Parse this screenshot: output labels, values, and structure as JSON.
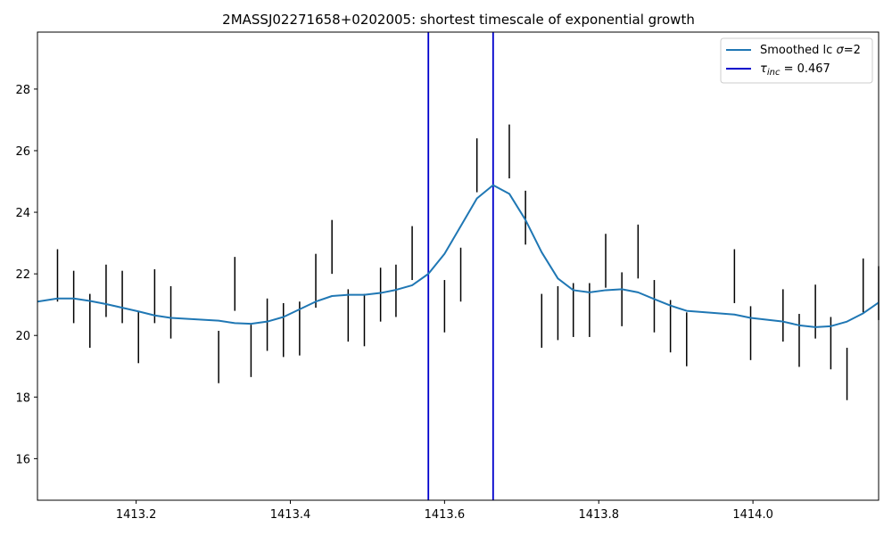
{
  "chart_data": {
    "type": "line",
    "title": "2MASSJ02271658+0202005: shortest timescale of exponential growth",
    "xlabel": "",
    "ylabel": "",
    "xlim": [
      1413.072,
      1414.163
    ],
    "ylim": [
      14.65,
      29.85
    ],
    "xticks": [
      1413.2,
      1413.4,
      1413.6,
      1413.8,
      1414.0
    ],
    "yticks": [
      16,
      18,
      20,
      22,
      24,
      26,
      28
    ],
    "legend": {
      "placement": "top-right",
      "entries": [
        {
          "label_pre": "Smoothed lc ",
          "label_greek": "σ",
          "label_post": "=2",
          "color": "#1f77b4"
        },
        {
          "label_greek": "τ",
          "label_sub": "inc",
          "label_post": " = 0.467",
          "color": "#0000cc"
        }
      ]
    },
    "series": [
      {
        "name": "Smoothed lc σ=2",
        "color": "#1f77b4",
        "x": [
          1413.072,
          1413.098,
          1413.119,
          1413.14,
          1413.161,
          1413.182,
          1413.203,
          1413.224,
          1413.245,
          1413.307,
          1413.328,
          1413.349,
          1413.37,
          1413.391,
          1413.412,
          1413.433,
          1413.454,
          1413.475,
          1413.496,
          1413.517,
          1413.537,
          1413.558,
          1413.579,
          1413.6,
          1413.621,
          1413.642,
          1413.663,
          1413.684,
          1413.705,
          1413.726,
          1413.747,
          1413.767,
          1413.788,
          1413.809,
          1413.83,
          1413.851,
          1413.872,
          1413.893,
          1413.914,
          1413.976,
          1413.997,
          1414.039,
          1414.06,
          1414.081,
          1414.101,
          1414.122,
          1414.143,
          1414.163
        ],
        "y": [
          21.1,
          21.2,
          21.2,
          21.12,
          21.02,
          20.9,
          20.78,
          20.65,
          20.57,
          20.48,
          20.4,
          20.38,
          20.45,
          20.6,
          20.85,
          21.1,
          21.28,
          21.32,
          21.32,
          21.38,
          21.48,
          21.63,
          22.0,
          22.65,
          23.55,
          24.45,
          24.88,
          24.6,
          23.75,
          22.7,
          21.85,
          21.47,
          21.4,
          21.47,
          21.5,
          21.4,
          21.18,
          20.97,
          20.8,
          20.68,
          20.57,
          20.45,
          20.33,
          20.27,
          20.3,
          20.45,
          20.72,
          21.07
        ]
      }
    ],
    "error_bars": {
      "color": "#000000",
      "x": [
        1413.098,
        1413.119,
        1413.14,
        1413.161,
        1413.182,
        1413.203,
        1413.224,
        1413.245,
        1413.307,
        1413.328,
        1413.349,
        1413.37,
        1413.391,
        1413.412,
        1413.433,
        1413.454,
        1413.475,
        1413.496,
        1413.517,
        1413.537,
        1413.558,
        1413.6,
        1413.621,
        1413.642,
        1413.684,
        1413.705,
        1413.726,
        1413.747,
        1413.767,
        1413.788,
        1413.809,
        1413.83,
        1413.851,
        1413.872,
        1413.893,
        1413.914,
        1413.976,
        1413.997,
        1414.039,
        1414.06,
        1414.081,
        1414.101,
        1414.122,
        1414.143,
        1414.163
      ],
      "low": [
        21.1,
        20.4,
        19.6,
        20.6,
        20.4,
        19.1,
        20.4,
        19.9,
        18.45,
        20.8,
        18.65,
        19.5,
        19.3,
        19.35,
        20.9,
        22.0,
        19.8,
        19.65,
        20.45,
        20.6,
        21.8,
        20.1,
        21.1,
        24.65,
        25.1,
        22.95,
        19.6,
        19.85,
        19.95,
        19.95,
        21.55,
        20.3,
        21.85,
        20.1,
        19.45,
        19.0,
        21.05,
        19.2,
        19.8,
        18.98,
        19.9,
        18.9,
        17.9,
        20.75,
        20.5
      ],
      "high": [
        22.8,
        22.1,
        21.35,
        22.3,
        22.1,
        20.8,
        22.15,
        21.6,
        20.15,
        22.55,
        20.35,
        21.2,
        21.05,
        21.1,
        22.65,
        23.75,
        21.5,
        21.35,
        22.2,
        22.3,
        23.55,
        21.8,
        22.85,
        26.4,
        26.85,
        24.7,
        21.35,
        21.6,
        21.7,
        21.7,
        23.3,
        22.05,
        23.6,
        21.8,
        21.15,
        20.75,
        22.8,
        20.95,
        21.5,
        20.7,
        21.65,
        20.6,
        19.6,
        22.5,
        22.25
      ]
    },
    "vlines": {
      "color": "#0000cc",
      "x": [
        1413.579,
        1413.663
      ]
    }
  }
}
